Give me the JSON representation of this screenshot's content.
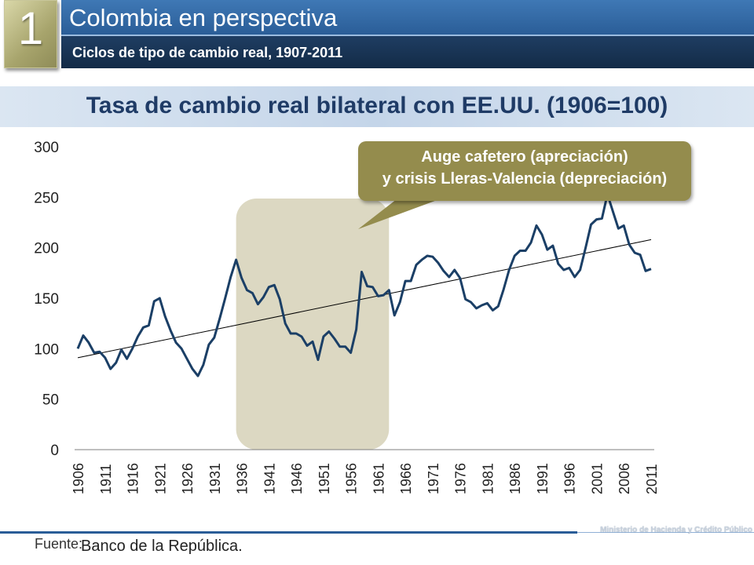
{
  "header": {
    "section_number": "1",
    "title": "Colombia en perspectiva",
    "subtitle": "Ciclos de tipo de cambio real, 1907-2011"
  },
  "chart_title": "Tasa de cambio real bilateral con EE.UU. (1906=100)",
  "callout": {
    "line1": "Auge cafetero (apreciación)",
    "line2": "y crisis Lleras-Valencia (depreciación)"
  },
  "footer": {
    "source_label": "Fuente:",
    "source": "Banco de la República.",
    "ministry": "Ministerio de Hacienda y Crédito Público"
  },
  "colors": {
    "series": "#1b3f66",
    "highlight": "#dcd8c2",
    "callout": "#948c4d",
    "header_blue": "#2a5d97"
  },
  "chart_data": {
    "type": "line",
    "ylim": [
      0,
      300
    ],
    "y_ticks": [
      0,
      50,
      100,
      150,
      200,
      250,
      300
    ],
    "x_tick_labels": [
      "1906",
      "1911",
      "1916",
      "1921",
      "1926",
      "1931",
      "1936",
      "1941",
      "1946",
      "1951",
      "1956",
      "1961",
      "1966",
      "1971",
      "1976",
      "1981",
      "1986",
      "1991",
      "1996",
      "2001",
      "2006",
      "2011"
    ],
    "highlight_period": [
      1935,
      1963
    ],
    "series": [
      {
        "x": [
          1906,
          1907,
          1908,
          1909,
          1910,
          1911,
          1912,
          1913,
          1914,
          1915,
          1916,
          1917,
          1918,
          1919,
          1920,
          1921,
          1922,
          1923,
          1924,
          1925,
          1926,
          1927,
          1928,
          1929,
          1930,
          1931,
          1932,
          1933,
          1934,
          1935,
          1936,
          1937,
          1938,
          1939,
          1940,
          1941,
          1942,
          1943,
          1944,
          1945,
          1946,
          1947,
          1948,
          1949,
          1950,
          1951,
          1952,
          1953,
          1954,
          1955,
          1956,
          1957,
          1958,
          1959,
          1960,
          1961,
          1962,
          1963,
          1964,
          1965,
          1966,
          1967,
          1968,
          1969,
          1970,
          1971,
          1972,
          1973,
          1974,
          1975,
          1976,
          1977,
          1978,
          1979,
          1980,
          1981,
          1982,
          1983,
          1984,
          1985,
          1986,
          1987,
          1988,
          1989,
          1990,
          1991,
          1992,
          1993,
          1994,
          1995,
          1996,
          1997,
          1998,
          1999,
          2000,
          2001,
          2002,
          2003,
          2004,
          2005,
          2006,
          2007,
          2008,
          2009,
          2010,
          2011
        ],
        "values": [
          100,
          113,
          106,
          96,
          97,
          91,
          80,
          86,
          99,
          90,
          100,
          112,
          121,
          123,
          147,
          150,
          132,
          118,
          106,
          100,
          90,
          80,
          73,
          84,
          104,
          111,
          130,
          150,
          171,
          188,
          170,
          158,
          155,
          144,
          151,
          161,
          163,
          149,
          125,
          115,
          115,
          112,
          103,
          107,
          89,
          112,
          117,
          110,
          102,
          102,
          96,
          119,
          176,
          162,
          161,
          152,
          153,
          158,
          133,
          146,
          167,
          167,
          183,
          188,
          192,
          191,
          185,
          177,
          171,
          178,
          170,
          149,
          146,
          140,
          143,
          145,
          138,
          142,
          159,
          178,
          192,
          197,
          197,
          205,
          222,
          213,
          198,
          202,
          184,
          178,
          180,
          171,
          178,
          200,
          223,
          228,
          229,
          253,
          236,
          219,
          222,
          203,
          195,
          193,
          177,
          179
        ]
      }
    ],
    "trend_line": {
      "x": [
        1906,
        2011
      ],
      "y": [
        91,
        208
      ]
    }
  }
}
